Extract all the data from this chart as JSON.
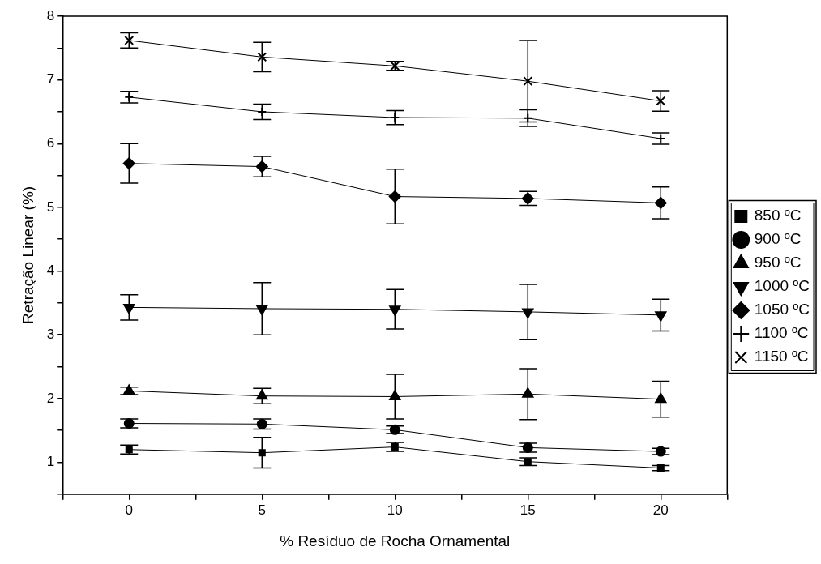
{
  "chart_data": {
    "type": "line",
    "xlabel": "% Resíduo de Rocha Ornamental",
    "ylabel": "Retração Linear (%)",
    "x": [
      0,
      5,
      10,
      15,
      20
    ],
    "xlim": [
      -2.5,
      22.5
    ],
    "xticks": [
      {
        "value": -2.5,
        "label": null
      },
      0,
      {
        "value": 2.5,
        "label": null
      },
      5,
      {
        "value": 7.5,
        "label": null
      },
      10,
      {
        "value": 12.5,
        "label": null
      },
      15,
      {
        "value": 17.5,
        "label": null
      },
      20,
      {
        "value": 22.5,
        "label": null
      }
    ],
    "ylim": [
      0.5,
      8
    ],
    "yticks": [
      {
        "value": 0.5,
        "label": null
      },
      1,
      {
        "value": 1.5,
        "label": null
      },
      2,
      {
        "value": 2.5,
        "label": null
      },
      3,
      {
        "value": 3.5,
        "label": null
      },
      4,
      {
        "value": 4.5,
        "label": null
      },
      5,
      {
        "value": 5.5,
        "label": null
      },
      6,
      {
        "value": 6.5,
        "label": null
      },
      7,
      {
        "value": 7.5,
        "label": null
      },
      8
    ],
    "grid": false,
    "legend": "right",
    "series": [
      {
        "name": "850 ºC",
        "color": "#000000",
        "marker": "square",
        "values": [
          1.2,
          1.15,
          1.24,
          1.01,
          0.91
        ],
        "errors": [
          0.07,
          0.24,
          0.07,
          0.06,
          0.04
        ]
      },
      {
        "name": "900 ºC",
        "color": "#000000",
        "marker": "circle",
        "values": [
          1.61,
          1.6,
          1.51,
          1.23,
          1.17
        ],
        "errors": [
          0.07,
          0.08,
          0.06,
          0.07,
          0.05
        ]
      },
      {
        "name": "950 ºC",
        "color": "#000000",
        "marker": "triangle",
        "values": [
          2.12,
          2.04,
          2.03,
          2.07,
          1.99
        ],
        "errors": [
          0.06,
          0.12,
          0.35,
          0.4,
          0.28
        ]
      },
      {
        "name": "1000 ºC",
        "color": "#000000",
        "marker": "triangle-down",
        "values": [
          3.43,
          3.41,
          3.4,
          3.36,
          3.31
        ],
        "errors": [
          0.2,
          0.41,
          0.31,
          0.43,
          0.25
        ]
      },
      {
        "name": "1050 ºC",
        "color": "#000000",
        "marker": "diamond",
        "values": [
          5.69,
          5.64,
          5.17,
          5.14,
          5.07
        ],
        "errors": [
          0.31,
          0.16,
          0.43,
          0.11,
          0.25
        ]
      },
      {
        "name": "1100 ºC",
        "color": "#000000",
        "marker": "plus",
        "values": [
          6.73,
          6.5,
          6.41,
          6.4,
          6.08
        ],
        "errors": [
          0.09,
          0.12,
          0.11,
          0.13,
          0.09
        ]
      },
      {
        "name": "1150 ºC",
        "color": "#000000",
        "marker": "cross",
        "values": [
          7.62,
          7.36,
          7.22,
          6.98,
          6.67
        ],
        "errors": [
          0.12,
          0.23,
          0.07,
          0.64,
          0.16
        ]
      }
    ]
  }
}
